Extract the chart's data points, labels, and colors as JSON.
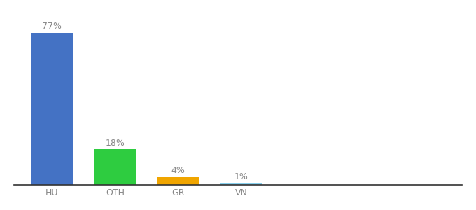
{
  "categories": [
    "HU",
    "OTH",
    "GR",
    "VN"
  ],
  "values": [
    77,
    18,
    4,
    1
  ],
  "bar_colors": [
    "#4472c4",
    "#2ecc40",
    "#f0a500",
    "#87ceeb"
  ],
  "labels": [
    "77%",
    "18%",
    "4%",
    "1%"
  ],
  "background_color": "#ffffff",
  "label_fontsize": 9,
  "tick_fontsize": 9,
  "ylim": [
    0,
    85
  ],
  "bar_width": 0.65,
  "label_color": "#888888",
  "tick_color": "#888888",
  "spine_color": "#333333"
}
